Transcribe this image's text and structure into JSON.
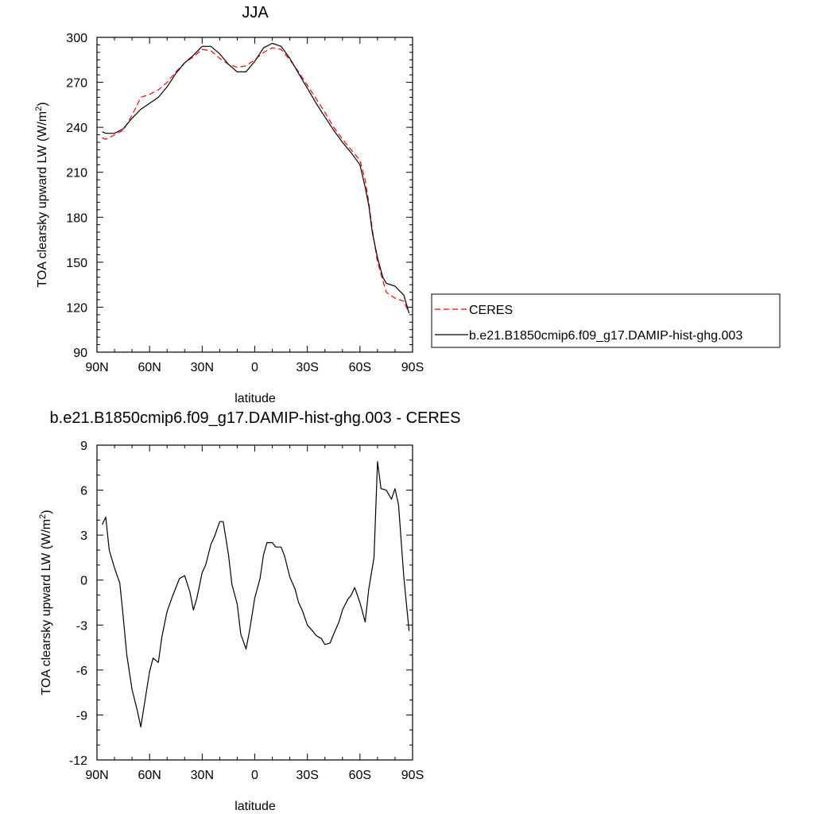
{
  "chart_data": [
    {
      "type": "line",
      "title": "JJA",
      "xlabel": "latitude",
      "ylabel": "TOA clearsky upward LW (W/m²)",
      "ylabel_main": "TOA clearsky upward LW (W/m",
      "ylabel_sup": "2",
      "ylabel_close": ")",
      "xlim": [
        90,
        -90
      ],
      "ylim": [
        90,
        300
      ],
      "xticks": [
        90,
        60,
        30,
        0,
        -30,
        -60,
        -90
      ],
      "xtick_labels": [
        "90N",
        "60N",
        "30N",
        "0",
        "30S",
        "60S",
        "90S"
      ],
      "yticks": [
        90,
        120,
        150,
        180,
        210,
        240,
        270,
        300
      ],
      "ytick_labels": [
        "90",
        "120",
        "150",
        "180",
        "210",
        "240",
        "270",
        "300"
      ],
      "legend": {
        "placement": "right",
        "entries": [
          "CERES",
          "b.e21.B1850cmip6.f09_g17.DAMIP-hist-ghg.003"
        ]
      },
      "series": [
        {
          "name": "CERES",
          "color": "#ff0000",
          "dash": "dashed",
          "x": [
            87,
            85,
            80,
            75,
            70,
            65,
            60,
            55,
            50,
            45,
            40,
            35,
            30,
            25,
            20,
            15,
            10,
            5,
            0,
            -5,
            -10,
            -15,
            -20,
            -25,
            -30,
            -35,
            -40,
            -45,
            -50,
            -55,
            -60,
            -63,
            -65,
            -67,
            -70,
            -73,
            -75,
            -80,
            -85,
            -88
          ],
          "y": [
            233,
            232,
            235,
            238,
            248,
            260,
            262,
            265,
            270,
            277,
            283,
            287,
            292,
            291,
            286,
            282,
            280,
            281,
            285,
            290,
            293,
            292,
            285,
            277,
            268,
            259,
            250,
            240,
            232,
            225,
            218,
            205,
            190,
            172,
            150,
            138,
            130,
            126,
            124,
            116
          ]
        },
        {
          "name": "b.e21.B1850cmip6.f09_g17.DAMIP-hist-ghg.003",
          "color": "#000000",
          "dash": "solid",
          "x": [
            87,
            85,
            80,
            75,
            70,
            65,
            60,
            55,
            50,
            45,
            40,
            35,
            30,
            25,
            20,
            15,
            10,
            5,
            0,
            -5,
            -10,
            -15,
            -20,
            -25,
            -30,
            -35,
            -40,
            -45,
            -50,
            -55,
            -60,
            -63,
            -65,
            -67,
            -70,
            -73,
            -75,
            -80,
            -85,
            -88
          ],
          "y": [
            237,
            236,
            236,
            239,
            246,
            252,
            256,
            260,
            267,
            276,
            283,
            288,
            294,
            294,
            289,
            282,
            277,
            277,
            284,
            293,
            296,
            294,
            286,
            276,
            266,
            256,
            247,
            238,
            230,
            223,
            215,
            200,
            188,
            170,
            153,
            140,
            136,
            134,
            128,
            116
          ]
        }
      ]
    },
    {
      "type": "line",
      "title": "b.e21.B1850cmip6.f09_g17.DAMIP-hist-ghg.003 - CERES",
      "xlabel": "latitude",
      "ylabel": "TOA clearsky upward LW (W/m²)",
      "ylabel_main": "TOA clearsky upward LW (W/m",
      "ylabel_sup": "2",
      "ylabel_close": ")",
      "xlim": [
        90,
        -90
      ],
      "ylim": [
        -12,
        9
      ],
      "xticks": [
        90,
        60,
        30,
        0,
        -30,
        -60,
        -90
      ],
      "xtick_labels": [
        "90N",
        "60N",
        "30N",
        "0",
        "30S",
        "60S",
        "90S"
      ],
      "yticks": [
        -12,
        -9,
        -6,
        -3,
        0,
        3,
        6,
        9
      ],
      "ytick_labels": [
        "-12",
        "-9",
        "-6",
        "-3",
        "0",
        "3",
        "6",
        "9"
      ],
      "series": [
        {
          "color": "#000000",
          "dash": "solid",
          "x": [
            87,
            85,
            83,
            80,
            77,
            75,
            73,
            70,
            67,
            65,
            63,
            60,
            58,
            55,
            53,
            50,
            47,
            45,
            43,
            40,
            37,
            35,
            33,
            30,
            28,
            25,
            23,
            20,
            18,
            15,
            13,
            10,
            8,
            5,
            3,
            0,
            -3,
            -5,
            -7,
            -10,
            -12,
            -15,
            -17,
            -20,
            -23,
            -25,
            -27,
            -30,
            -33,
            -35,
            -38,
            -40,
            -43,
            -45,
            -48,
            -50,
            -53,
            -55,
            -57,
            -60,
            -63,
            -65,
            -68,
            -70,
            -72,
            -75,
            -78,
            -80,
            -82,
            -85,
            -88
          ],
          "y": [
            3.7,
            4.2,
            2.0,
            0.8,
            -0.2,
            -2.5,
            -5.0,
            -7.3,
            -8.7,
            -9.8,
            -8.3,
            -6.1,
            -5.2,
            -5.5,
            -3.8,
            -2.1,
            -1.1,
            -0.5,
            0.1,
            0.3,
            -0.8,
            -2.0,
            -1.2,
            0.5,
            1.0,
            2.4,
            2.9,
            3.9,
            3.9,
            1.7,
            -0.3,
            -1.6,
            -3.6,
            -4.6,
            -3.4,
            -1.2,
            0.1,
            1.7,
            2.5,
            2.5,
            2.2,
            2.2,
            1.6,
            0.2,
            -0.6,
            -1.5,
            -2.0,
            -3.0,
            -3.4,
            -3.7,
            -3.9,
            -4.3,
            -4.2,
            -3.6,
            -2.8,
            -2.0,
            -1.3,
            -1.0,
            -0.5,
            -1.5,
            -2.8,
            -0.6,
            1.5,
            7.9,
            6.1,
            6.0,
            5.4,
            6.1,
            5.0,
            0.2,
            -3.4
          ]
        }
      ]
    }
  ]
}
